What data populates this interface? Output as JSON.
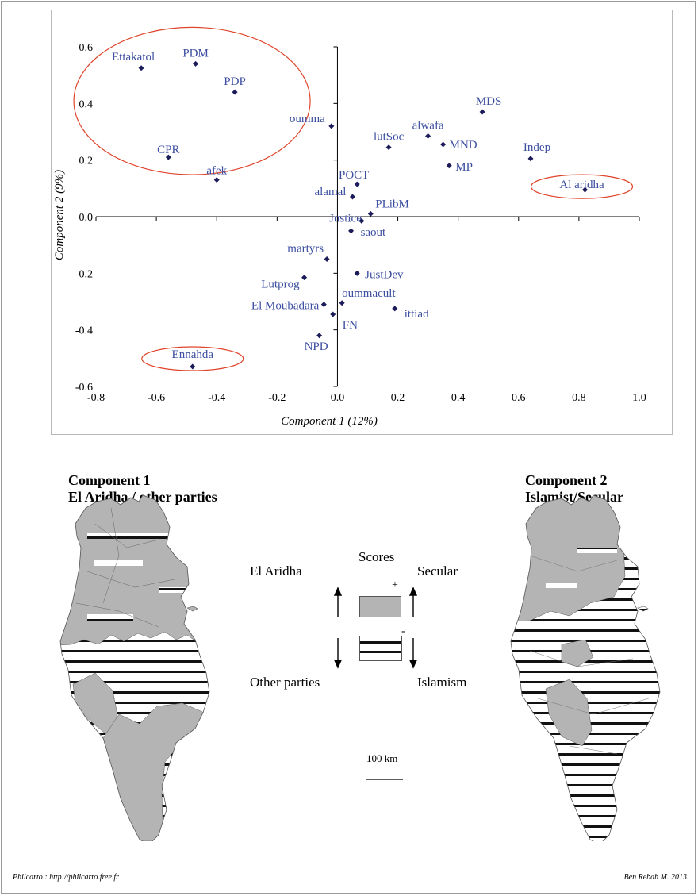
{
  "chart_data": {
    "type": "scatter",
    "xlabel": "Component 1 (12%)",
    "ylabel": "Component 2 (9%)",
    "xlim": [
      -0.8,
      1.0
    ],
    "ylim": [
      -0.6,
      0.6
    ],
    "xticks": [
      "-0.8",
      "-0.6",
      "-0.4",
      "-0.2",
      "0.0",
      "0.2",
      "0.4",
      "0.6",
      "0.8",
      "1.0"
    ],
    "yticks": [
      "0.6",
      "0.4",
      "0.2",
      "0.0",
      "-0.2",
      "-0.4",
      "-0.6"
    ],
    "grid": false,
    "points": [
      {
        "label": "Ettakatol",
        "x": -0.65,
        "y": 0.525
      },
      {
        "label": "PDM",
        "x": -0.47,
        "y": 0.54
      },
      {
        "label": "PDP",
        "x": -0.34,
        "y": 0.44
      },
      {
        "label": "CPR",
        "x": -0.56,
        "y": 0.21
      },
      {
        "label": "afek",
        "x": -0.4,
        "y": 0.13
      },
      {
        "label": "oumma",
        "x": -0.02,
        "y": 0.32
      },
      {
        "label": "MDS",
        "x": 0.48,
        "y": 0.37
      },
      {
        "label": "alwafa",
        "x": 0.3,
        "y": 0.285
      },
      {
        "label": "lutSoc",
        "x": 0.17,
        "y": 0.245
      },
      {
        "label": "MND",
        "x": 0.35,
        "y": 0.255
      },
      {
        "label": "MP",
        "x": 0.37,
        "y": 0.18
      },
      {
        "label": "Indep",
        "x": 0.64,
        "y": 0.205
      },
      {
        "label": "Al aridha",
        "x": 0.82,
        "y": 0.095
      },
      {
        "label": "POCT",
        "x": 0.065,
        "y": 0.115
      },
      {
        "label": "alamal",
        "x": 0.05,
        "y": 0.07
      },
      {
        "label": "PLibM",
        "x": 0.11,
        "y": 0.01
      },
      {
        "label": "Justice",
        "x": 0.08,
        "y": -0.015
      },
      {
        "label": "saout",
        "x": 0.045,
        "y": -0.05
      },
      {
        "label": "martyrs",
        "x": -0.035,
        "y": -0.15
      },
      {
        "label": "JustDev",
        "x": 0.065,
        "y": -0.2
      },
      {
        "label": "Lutprog",
        "x": -0.11,
        "y": -0.215
      },
      {
        "label": "oummacult",
        "x": 0.015,
        "y": -0.305
      },
      {
        "label": "El Moubadara",
        "x": -0.045,
        "y": -0.31
      },
      {
        "label": "ittiad",
        "x": 0.19,
        "y": -0.325
      },
      {
        "label": "FN",
        "x": -0.015,
        "y": -0.345
      },
      {
        "label": "NPD",
        "x": -0.06,
        "y": -0.42
      },
      {
        "label": "Ennahda",
        "x": -0.48,
        "y": -0.53
      }
    ],
    "highlight_groups": [
      [
        "Ettakatol",
        "PDM",
        "PDP",
        "CPR"
      ],
      [
        "Al aridha"
      ],
      [
        "Ennahda"
      ]
    ],
    "colors": {
      "points": "#1c1c5a",
      "labels": "#3b4ea0",
      "ellipses": "#e0442a"
    }
  },
  "maps": {
    "left": {
      "title": "Component 1",
      "subtitle": "El Aridha / other parties"
    },
    "right": {
      "title": "Component 2",
      "subtitle": "Islamist/Secular"
    }
  },
  "legend": {
    "scores": "Scores",
    "plus": "+",
    "minus": "-",
    "c1_positive": "El Aridha",
    "c1_negative": "Other parties",
    "c2_positive": "Secular",
    "c2_negative": "Islamism",
    "scale": "100 km",
    "fill_color": "#b4b4b4"
  },
  "footer": {
    "left": "Philcarto : http://philcarto.free.fr",
    "right": "Ben Rebah M. 2013"
  }
}
